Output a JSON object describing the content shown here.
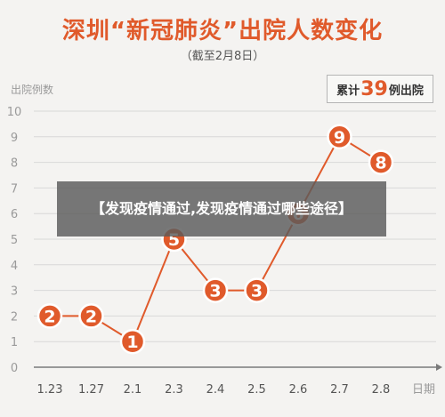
{
  "header": {
    "title": "深圳“新冠肺炎”出院人数变化",
    "subtitle": "（截至2月8日）"
  },
  "total_box": {
    "prefix": "累计",
    "number": "39",
    "suffix": "例出院"
  },
  "banner": {
    "text": "【发现疫情通过,发现疫情通过哪些途径】"
  },
  "colors": {
    "accent": "#e05a2b",
    "grid": "#d8d8d8",
    "axis_text": "#9a9a9a"
  },
  "chart_data": {
    "type": "line",
    "ylabel": "出院例数",
    "xlabel": "日期",
    "categories": [
      "1.23",
      "1.27",
      "2.1",
      "2.3",
      "2.4",
      "2.5",
      "2.6",
      "2.7",
      "2.8"
    ],
    "values": [
      2,
      2,
      1,
      5,
      3,
      3,
      6,
      9,
      8
    ],
    "ylim": [
      0,
      10
    ],
    "yticks": [
      0,
      1,
      2,
      3,
      4,
      5,
      6,
      7,
      8,
      9,
      10
    ],
    "grid": true,
    "legend": "none"
  }
}
